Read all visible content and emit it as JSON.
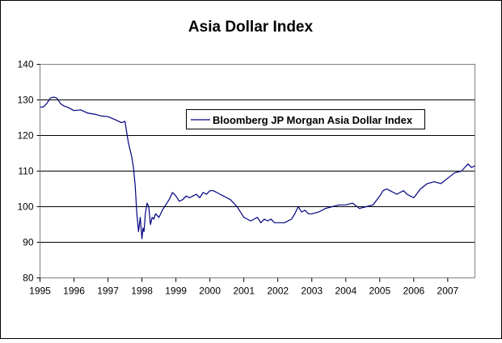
{
  "chart_data": {
    "type": "line",
    "title": "Asia Dollar Index",
    "xlabel": "",
    "ylabel": "",
    "ylim": [
      80,
      140
    ],
    "xlim": [
      1995.0,
      2007.8
    ],
    "y_ticks": [
      "80",
      "90",
      "100",
      "110",
      "120",
      "130",
      "140"
    ],
    "x_ticks": [
      "1995",
      "1996",
      "1997",
      "1998",
      "1999",
      "2000",
      "2001",
      "2002",
      "2003",
      "2004",
      "2005",
      "2006",
      "2007"
    ],
    "grid": "horizontal",
    "legend_position": "inside-top-center",
    "series": [
      {
        "name": "Bloomberg JP Morgan Asia Dollar Index",
        "color": "#000080",
        "x": [
          1995.0,
          1995.1,
          1995.2,
          1995.3,
          1995.4,
          1995.5,
          1995.6,
          1995.7,
          1995.8,
          1996.0,
          1996.2,
          1996.4,
          1996.6,
          1996.8,
          1997.0,
          1997.2,
          1997.4,
          1997.5,
          1997.55,
          1997.6,
          1997.65,
          1997.7,
          1997.75,
          1997.8,
          1997.85,
          1997.9,
          1997.95,
          1998.0,
          1998.03,
          1998.06,
          1998.1,
          1998.15,
          1998.2,
          1998.25,
          1998.3,
          1998.35,
          1998.4,
          1998.5,
          1998.6,
          1998.7,
          1998.8,
          1998.9,
          1999.0,
          1999.1,
          1999.2,
          1999.3,
          1999.4,
          1999.5,
          1999.6,
          1999.7,
          1999.8,
          1999.9,
          2000.0,
          2000.1,
          2000.2,
          2000.3,
          2000.4,
          2000.5,
          2000.6,
          2000.7,
          2000.8,
          2000.9,
          2001.0,
          2001.1,
          2001.2,
          2001.3,
          2001.4,
          2001.5,
          2001.6,
          2001.7,
          2001.8,
          2001.9,
          2002.0,
          2002.2,
          2002.4,
          2002.5,
          2002.6,
          2002.7,
          2002.8,
          2002.9,
          2003.0,
          2003.2,
          2003.4,
          2003.6,
          2003.8,
          2004.0,
          2004.2,
          2004.4,
          2004.6,
          2004.8,
          2005.0,
          2005.1,
          2005.2,
          2005.3,
          2005.4,
          2005.5,
          2005.6,
          2005.7,
          2005.8,
          2006.0,
          2006.2,
          2006.4,
          2006.6,
          2006.8,
          2007.0,
          2007.2,
          2007.4,
          2007.6,
          2007.7,
          2007.8
        ],
        "y": [
          128,
          128,
          129,
          130.5,
          130.8,
          130.5,
          129,
          128.3,
          128,
          127,
          127.2,
          126.3,
          126,
          125.5,
          125.3,
          124.5,
          123.6,
          124,
          121,
          118,
          116,
          114,
          111,
          106,
          98,
          93,
          97,
          91,
          94,
          93,
          98,
          101,
          100,
          95,
          97,
          96.5,
          98,
          97,
          99,
          100.5,
          102,
          104,
          103,
          101.5,
          102,
          103,
          102.5,
          103,
          103.5,
          102.5,
          104,
          103.5,
          104.5,
          104.5,
          104,
          103.5,
          103,
          102.5,
          102,
          101,
          100,
          98.5,
          97,
          96.5,
          96,
          96.5,
          97,
          95.5,
          96.5,
          96,
          96.5,
          95.5,
          95.5,
          95.5,
          96.5,
          98,
          100,
          98.5,
          99,
          98,
          98,
          98.5,
          99.5,
          100,
          100.5,
          100.5,
          101,
          99.5,
          100,
          100.5,
          103,
          104.5,
          105,
          104.5,
          104,
          103.5,
          104,
          104.5,
          103.5,
          102.5,
          105,
          106.5,
          107,
          106.5,
          108,
          109.5,
          110,
          112,
          111,
          111.5
        ]
      }
    ]
  }
}
